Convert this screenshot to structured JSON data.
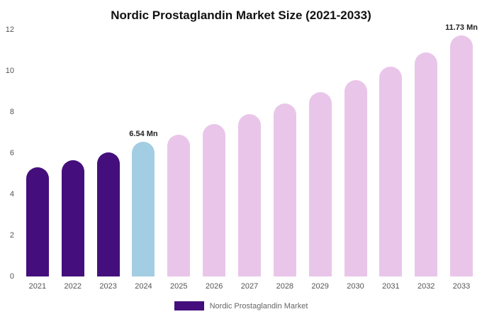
{
  "chart_data": {
    "type": "bar",
    "title": "Nordic Prostaglandin Market Size (2021-2033)",
    "categories": [
      "2021",
      "2022",
      "2023",
      "2024",
      "2025",
      "2026",
      "2027",
      "2028",
      "2029",
      "2030",
      "2031",
      "2032",
      "2033"
    ],
    "values": [
      5.3,
      5.65,
      6.05,
      6.54,
      6.9,
      7.4,
      7.9,
      8.4,
      8.95,
      9.55,
      10.2,
      10.9,
      11.73
    ],
    "bar_colors": [
      "#440f7c",
      "#440f7c",
      "#440f7c",
      "#a3cde3",
      "#e9c6e9",
      "#e9c6e9",
      "#e9c6e9",
      "#e9c6e9",
      "#e9c6e9",
      "#e9c6e9",
      "#e9c6e9",
      "#e9c6e9",
      "#e9c6e9"
    ],
    "annotations": [
      {
        "index": 3,
        "text": "6.54 Mn"
      },
      {
        "index": 12,
        "text": "11.73 Mn"
      }
    ],
    "xlabel": "",
    "ylabel": "",
    "ylim": [
      0,
      12
    ],
    "yticks": [
      0,
      2,
      4,
      6,
      8,
      10,
      12
    ],
    "grid": false,
    "legend_position": "bottom",
    "legend": [
      {
        "label": "Nordic Prostaglandin Market",
        "color": "#440f7c"
      }
    ]
  }
}
